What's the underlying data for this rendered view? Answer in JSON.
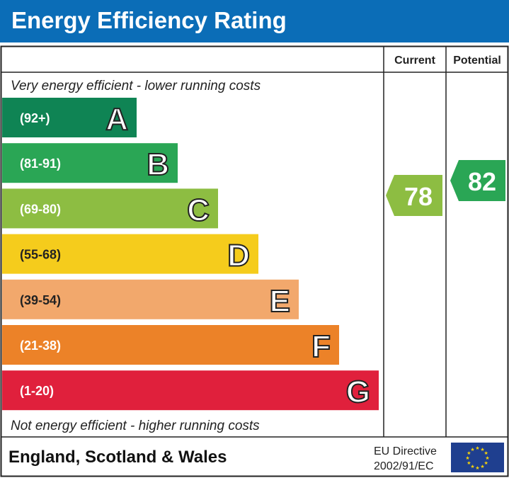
{
  "title": "Energy Efficiency Rating",
  "chart_data": {
    "type": "bar",
    "columns": [
      "Current",
      "Potential"
    ],
    "top_note": "Very energy efficient - lower running costs",
    "bottom_note": "Not energy efficient - higher running costs",
    "bands": [
      {
        "letter": "A",
        "range": "(92+)",
        "color": "#0f8454"
      },
      {
        "letter": "B",
        "range": "(81-91)",
        "color": "#2aa655"
      },
      {
        "letter": "C",
        "range": "(69-80)",
        "color": "#8dbd42"
      },
      {
        "letter": "D",
        "range": "(55-68)",
        "color": "#f5cc1c"
      },
      {
        "letter": "E",
        "range": "(39-54)",
        "color": "#f2a86c"
      },
      {
        "letter": "F",
        "range": "(21-38)",
        "color": "#ec8228"
      },
      {
        "letter": "G",
        "range": "(1-20)",
        "color": "#e0203c"
      }
    ],
    "current": {
      "value": 78,
      "band": "C",
      "color": "#8dbd42"
    },
    "potential": {
      "value": 82,
      "band": "B",
      "color": "#2aa655"
    }
  },
  "footer": {
    "region": "England, Scotland & Wales",
    "directive_line1": "EU Directive",
    "directive_line2": "2002/91/EC",
    "flag": "eu-flag-icon"
  }
}
